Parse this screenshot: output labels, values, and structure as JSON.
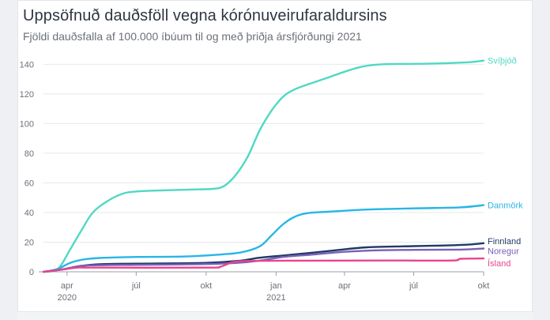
{
  "chart_data": {
    "type": "line",
    "title": "Uppsöfnuð dauðsföll vegna kórónuveirufaraldursins",
    "subtitle": "Fjöldi dauðsfalla af 100.000 íbúum til og með þriðja ársfjórðungi 2021",
    "ylim": [
      0,
      145
    ],
    "yticks": [
      0,
      20,
      40,
      60,
      80,
      100,
      120,
      140
    ],
    "xlim": [
      "2020-03-01",
      "2021-10-01"
    ],
    "xticks": [
      {
        "date": "2020-04-01",
        "label": "apr",
        "sub": "2020"
      },
      {
        "date": "2020-07-01",
        "label": "júl",
        "sub": ""
      },
      {
        "date": "2020-10-01",
        "label": "okt",
        "sub": ""
      },
      {
        "date": "2021-01-01",
        "label": "jan",
        "sub": "2021"
      },
      {
        "date": "2021-04-01",
        "label": "apr",
        "sub": ""
      },
      {
        "date": "2021-07-01",
        "label": "júl",
        "sub": ""
      },
      {
        "date": "2021-10-01",
        "label": "okt",
        "sub": ""
      }
    ],
    "grid": true,
    "series": [
      {
        "name": "Svíþjóð",
        "color": "#4fd8c4",
        "points": [
          [
            "2020-03-01",
            0
          ],
          [
            "2020-03-20",
            2
          ],
          [
            "2020-04-05",
            15
          ],
          [
            "2020-04-20",
            28
          ],
          [
            "2020-05-05",
            40
          ],
          [
            "2020-05-25",
            48
          ],
          [
            "2020-06-15",
            53
          ],
          [
            "2020-07-10",
            54.5
          ],
          [
            "2020-08-10",
            55
          ],
          [
            "2020-09-10",
            55.5
          ],
          [
            "2020-10-10",
            56
          ],
          [
            "2020-10-25",
            58
          ],
          [
            "2020-11-10",
            66
          ],
          [
            "2020-11-25",
            78
          ],
          [
            "2020-12-10",
            95
          ],
          [
            "2020-12-25",
            108
          ],
          [
            "2021-01-10",
            118
          ],
          [
            "2021-01-25",
            123
          ],
          [
            "2021-02-15",
            127
          ],
          [
            "2021-03-10",
            131
          ],
          [
            "2021-04-01",
            135
          ],
          [
            "2021-04-25",
            138.5
          ],
          [
            "2021-05-20",
            140
          ],
          [
            "2021-07-01",
            140.3
          ],
          [
            "2021-08-15",
            140.8
          ],
          [
            "2021-09-15",
            141.5
          ],
          [
            "2021-10-01",
            142.5
          ]
        ]
      },
      {
        "name": "Danmörk",
        "color": "#27b6e6",
        "points": [
          [
            "2020-03-01",
            0
          ],
          [
            "2020-03-20",
            2
          ],
          [
            "2020-04-05",
            6
          ],
          [
            "2020-04-25",
            8.5
          ],
          [
            "2020-05-20",
            9.5
          ],
          [
            "2020-07-01",
            10
          ],
          [
            "2020-09-01",
            10.3
          ],
          [
            "2020-10-15",
            11.5
          ],
          [
            "2020-11-15",
            13
          ],
          [
            "2020-12-10",
            17
          ],
          [
            "2020-12-25",
            24
          ],
          [
            "2021-01-10",
            32
          ],
          [
            "2021-01-25",
            37
          ],
          [
            "2021-02-10",
            39.5
          ],
          [
            "2021-03-10",
            40.5
          ],
          [
            "2021-05-01",
            42
          ],
          [
            "2021-07-01",
            42.8
          ],
          [
            "2021-09-01",
            43.5
          ],
          [
            "2021-10-01",
            45
          ]
        ]
      },
      {
        "name": "Finnland",
        "color": "#1f3b63",
        "points": [
          [
            "2020-03-01",
            0
          ],
          [
            "2020-03-25",
            1.5
          ],
          [
            "2020-04-20",
            4
          ],
          [
            "2020-05-20",
            5.2
          ],
          [
            "2020-07-01",
            5.5
          ],
          [
            "2020-10-01",
            6
          ],
          [
            "2020-11-15",
            7.5
          ],
          [
            "2020-12-10",
            9.5
          ],
          [
            "2021-01-10",
            11
          ],
          [
            "2021-02-10",
            12.5
          ],
          [
            "2021-03-20",
            14.5
          ],
          [
            "2021-05-01",
            16.5
          ],
          [
            "2021-07-01",
            17.3
          ],
          [
            "2021-08-15",
            17.8
          ],
          [
            "2021-09-15",
            18.5
          ],
          [
            "2021-10-01",
            19.3
          ]
        ]
      },
      {
        "name": "Noregur",
        "color": "#7b5fb8",
        "points": [
          [
            "2020-03-01",
            0
          ],
          [
            "2020-03-25",
            1.5
          ],
          [
            "2020-04-20",
            4
          ],
          [
            "2020-05-20",
            4.5
          ],
          [
            "2020-07-01",
            4.7
          ],
          [
            "2020-10-01",
            5.2
          ],
          [
            "2020-11-10",
            6
          ],
          [
            "2020-12-10",
            7.5
          ],
          [
            "2021-01-10",
            10
          ],
          [
            "2021-02-15",
            11.5
          ],
          [
            "2021-04-01",
            13.5
          ],
          [
            "2021-05-15",
            14.5
          ],
          [
            "2021-07-01",
            14.8
          ],
          [
            "2021-09-01",
            15
          ],
          [
            "2021-10-01",
            15.7
          ]
        ]
      },
      {
        "name": "Ísland",
        "color": "#e8448e",
        "points": [
          [
            "2020-03-01",
            0
          ],
          [
            "2020-03-25",
            1.5
          ],
          [
            "2020-04-15",
            2.8
          ],
          [
            "2020-05-10",
            2.8
          ],
          [
            "2020-10-01",
            2.8
          ],
          [
            "2020-10-20",
            3.5
          ],
          [
            "2020-11-05",
            6.5
          ],
          [
            "2020-11-25",
            7.3
          ],
          [
            "2021-02-01",
            7.5
          ],
          [
            "2021-06-01",
            7.6
          ],
          [
            "2021-08-20",
            7.6
          ],
          [
            "2021-09-01",
            8.8
          ],
          [
            "2021-10-01",
            9
          ]
        ]
      }
    ]
  }
}
